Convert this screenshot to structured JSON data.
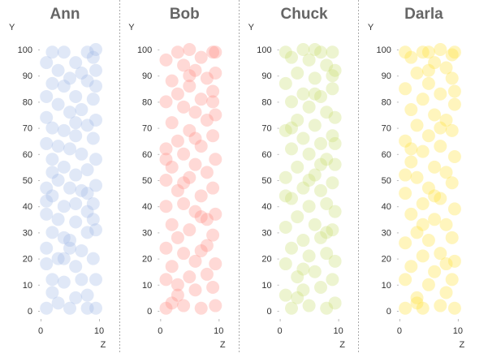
{
  "chart_data": {
    "type": "scatter",
    "layout": "small-multiples",
    "xlabel": "Z",
    "ylabel": "Y",
    "xlim": [
      0,
      10
    ],
    "ylim": [
      0,
      100
    ],
    "xticks": [
      "0",
      "10"
    ],
    "yticks": [
      "0",
      "10",
      "20",
      "30",
      "40",
      "50",
      "60",
      "70",
      "80",
      "90",
      "100"
    ],
    "grid": false,
    "panels": [
      {
        "name": "Ann",
        "color": "#9fb6e6",
        "points": [
          [
            1,
            1
          ],
          [
            5,
            1
          ],
          [
            8,
            1
          ],
          [
            10,
            1
          ],
          [
            2,
            7
          ],
          [
            8,
            6
          ],
          [
            4,
            11
          ],
          [
            10,
            12
          ],
          [
            2,
            12
          ],
          [
            6,
            17
          ],
          [
            1,
            18
          ],
          [
            9,
            20
          ],
          [
            3,
            20
          ],
          [
            5,
            24
          ],
          [
            1,
            24
          ],
          [
            7,
            23
          ],
          [
            4,
            28
          ],
          [
            5,
            27
          ],
          [
            2,
            30
          ],
          [
            8,
            30
          ],
          [
            10,
            31
          ],
          [
            3,
            35
          ],
          [
            6,
            34
          ],
          [
            1,
            37
          ],
          [
            8,
            38
          ],
          [
            4,
            40
          ],
          [
            9,
            41
          ],
          [
            6,
            41
          ],
          [
            2,
            44
          ],
          [
            1,
            42
          ],
          [
            5,
            47
          ],
          [
            7,
            46
          ],
          [
            10,
            48
          ],
          [
            3,
            50
          ],
          [
            1,
            47
          ],
          [
            6,
            52
          ],
          [
            8,
            54
          ],
          [
            4,
            55
          ],
          [
            2,
            58
          ],
          [
            10,
            58
          ],
          [
            7,
            60
          ],
          [
            5,
            62
          ],
          [
            1,
            64
          ],
          [
            3,
            63
          ],
          [
            9,
            66
          ],
          [
            6,
            67
          ],
          [
            2,
            70
          ],
          [
            4,
            69
          ],
          [
            8,
            71
          ],
          [
            10,
            73
          ],
          [
            1,
            74
          ],
          [
            5,
            76
          ],
          [
            7,
            77
          ],
          [
            3,
            79
          ],
          [
            9,
            81
          ],
          [
            6,
            82
          ],
          [
            1,
            82
          ],
          [
            4,
            86
          ],
          [
            2,
            87
          ],
          [
            8,
            88
          ],
          [
            10,
            86
          ],
          [
            5,
            89
          ],
          [
            7,
            91
          ],
          [
            3,
            92
          ],
          [
            10,
            92
          ],
          [
            1,
            95
          ],
          [
            6,
            95
          ],
          [
            9,
            97
          ],
          [
            4,
            99
          ],
          [
            8,
            99
          ],
          [
            2,
            99
          ],
          [
            10,
            100
          ],
          [
            6,
            5
          ],
          [
            3,
            3
          ],
          [
            7,
            12
          ],
          [
            9,
            35
          ],
          [
            2,
            53
          ],
          [
            6,
            72
          ],
          [
            4,
            20
          ],
          [
            8,
            45
          ]
        ]
      },
      {
        "name": "Bob",
        "color": "#ff8a80",
        "points": [
          [
            1,
            1
          ],
          [
            4,
            2
          ],
          [
            7,
            1
          ],
          [
            10,
            2
          ],
          [
            3,
            6
          ],
          [
            6,
            8
          ],
          [
            9,
            9
          ],
          [
            1,
            12
          ],
          [
            5,
            13
          ],
          [
            8,
            14
          ],
          [
            2,
            17
          ],
          [
            6,
            19
          ],
          [
            10,
            18
          ],
          [
            4,
            22
          ],
          [
            1,
            24
          ],
          [
            7,
            23
          ],
          [
            3,
            28
          ],
          [
            9,
            29
          ],
          [
            5,
            31
          ],
          [
            2,
            33
          ],
          [
            8,
            35
          ],
          [
            10,
            37
          ],
          [
            6,
            38
          ],
          [
            1,
            40
          ],
          [
            4,
            41
          ],
          [
            7,
            44
          ],
          [
            3,
            46
          ],
          [
            9,
            47
          ],
          [
            1,
            50
          ],
          [
            5,
            51
          ],
          [
            8,
            53
          ],
          [
            2,
            55
          ],
          [
            6,
            56
          ],
          [
            10,
            58
          ],
          [
            4,
            60
          ],
          [
            1,
            62
          ],
          [
            7,
            63
          ],
          [
            3,
            65
          ],
          [
            9,
            67
          ],
          [
            5,
            69
          ],
          [
            2,
            72
          ],
          [
            8,
            73
          ],
          [
            10,
            75
          ],
          [
            6,
            76
          ],
          [
            4,
            78
          ],
          [
            1,
            80
          ],
          [
            7,
            81
          ],
          [
            3,
            83
          ],
          [
            9,
            84
          ],
          [
            5,
            86
          ],
          [
            2,
            88
          ],
          [
            8,
            89
          ],
          [
            10,
            91
          ],
          [
            6,
            92
          ],
          [
            4,
            94
          ],
          [
            1,
            96
          ],
          [
            7,
            97
          ],
          [
            3,
            99
          ],
          [
            9,
            99
          ],
          [
            5,
            100
          ],
          [
            10,
            99
          ],
          [
            2,
            3
          ],
          [
            8,
            25
          ],
          [
            4,
            49
          ],
          [
            6,
            66
          ],
          [
            9,
            80
          ],
          [
            3,
            10
          ],
          [
            7,
            36
          ],
          [
            1,
            58
          ],
          [
            5,
            90
          ]
        ]
      },
      {
        "name": "Chuck",
        "color": "#c6dc6c",
        "points": [
          [
            2,
            1
          ],
          [
            5,
            2
          ],
          [
            8,
            1
          ],
          [
            10,
            3
          ],
          [
            1,
            6
          ],
          [
            4,
            8
          ],
          [
            7,
            9
          ],
          [
            9,
            12
          ],
          [
            3,
            13
          ],
          [
            6,
            15
          ],
          [
            1,
            18
          ],
          [
            10,
            19
          ],
          [
            5,
            21
          ],
          [
            8,
            22
          ],
          [
            2,
            24
          ],
          [
            4,
            27
          ],
          [
            7,
            28
          ],
          [
            9,
            31
          ],
          [
            1,
            32
          ],
          [
            6,
            33
          ],
          [
            3,
            36
          ],
          [
            10,
            38
          ],
          [
            5,
            40
          ],
          [
            8,
            41
          ],
          [
            2,
            43
          ],
          [
            7,
            46
          ],
          [
            4,
            47
          ],
          [
            9,
            49
          ],
          [
            1,
            51
          ],
          [
            6,
            52
          ],
          [
            3,
            55
          ],
          [
            10,
            56
          ],
          [
            8,
            58
          ],
          [
            5,
            60
          ],
          [
            2,
            62
          ],
          [
            7,
            64
          ],
          [
            4,
            66
          ],
          [
            9,
            67
          ],
          [
            1,
            69
          ],
          [
            6,
            71
          ],
          [
            3,
            73
          ],
          [
            10,
            74
          ],
          [
            8,
            76
          ],
          [
            5,
            78
          ],
          [
            2,
            80
          ],
          [
            7,
            82
          ],
          [
            4,
            83
          ],
          [
            9,
            85
          ],
          [
            1,
            87
          ],
          [
            6,
            89
          ],
          [
            3,
            91
          ],
          [
            10,
            92
          ],
          [
            8,
            94
          ],
          [
            5,
            96
          ],
          [
            2,
            97
          ],
          [
            7,
            99
          ],
          [
            4,
            100
          ],
          [
            9,
            99
          ],
          [
            1,
            99
          ],
          [
            6,
            100
          ],
          [
            3,
            5
          ],
          [
            8,
            30
          ],
          [
            5,
            50
          ],
          [
            2,
            70
          ],
          [
            9,
            90
          ],
          [
            4,
            16
          ],
          [
            7,
            56
          ],
          [
            1,
            44
          ],
          [
            10,
            64
          ],
          [
            6,
            83
          ]
        ]
      },
      {
        "name": "Darla",
        "color": "#ffe033",
        "points": [
          [
            1,
            1
          ],
          [
            4,
            1
          ],
          [
            7,
            2
          ],
          [
            10,
            1
          ],
          [
            3,
            5
          ],
          [
            8,
            7
          ],
          [
            5,
            10
          ],
          [
            1,
            12
          ],
          [
            9,
            12
          ],
          [
            6,
            15
          ],
          [
            2,
            17
          ],
          [
            10,
            19
          ],
          [
            4,
            21
          ],
          [
            7,
            22
          ],
          [
            1,
            26
          ],
          [
            5,
            27
          ],
          [
            9,
            28
          ],
          [
            3,
            30
          ],
          [
            8,
            33
          ],
          [
            6,
            35
          ],
          [
            2,
            37
          ],
          [
            10,
            39
          ],
          [
            4,
            41
          ],
          [
            7,
            43
          ],
          [
            1,
            45
          ],
          [
            5,
            47
          ],
          [
            9,
            49
          ],
          [
            3,
            51
          ],
          [
            8,
            53
          ],
          [
            6,
            55
          ],
          [
            2,
            57
          ],
          [
            10,
            59
          ],
          [
            4,
            61
          ],
          [
            7,
            63
          ],
          [
            1,
            65
          ],
          [
            5,
            67
          ],
          [
            9,
            69
          ],
          [
            3,
            71
          ],
          [
            8,
            73
          ],
          [
            6,
            75
          ],
          [
            2,
            77
          ],
          [
            10,
            79
          ],
          [
            4,
            81
          ],
          [
            7,
            83
          ],
          [
            1,
            85
          ],
          [
            5,
            87
          ],
          [
            9,
            89
          ],
          [
            3,
            91
          ],
          [
            8,
            93
          ],
          [
            6,
            95
          ],
          [
            2,
            97
          ],
          [
            10,
            99
          ],
          [
            4,
            99
          ],
          [
            7,
            100
          ],
          [
            1,
            99
          ],
          [
            5,
            99
          ],
          [
            9,
            98
          ],
          [
            3,
            3
          ],
          [
            8,
            18
          ],
          [
            6,
            44
          ],
          [
            2,
            62
          ],
          [
            10,
            84
          ],
          [
            4,
            33
          ],
          [
            7,
            70
          ],
          [
            1,
            52
          ],
          [
            5,
            92
          ]
        ]
      }
    ]
  }
}
